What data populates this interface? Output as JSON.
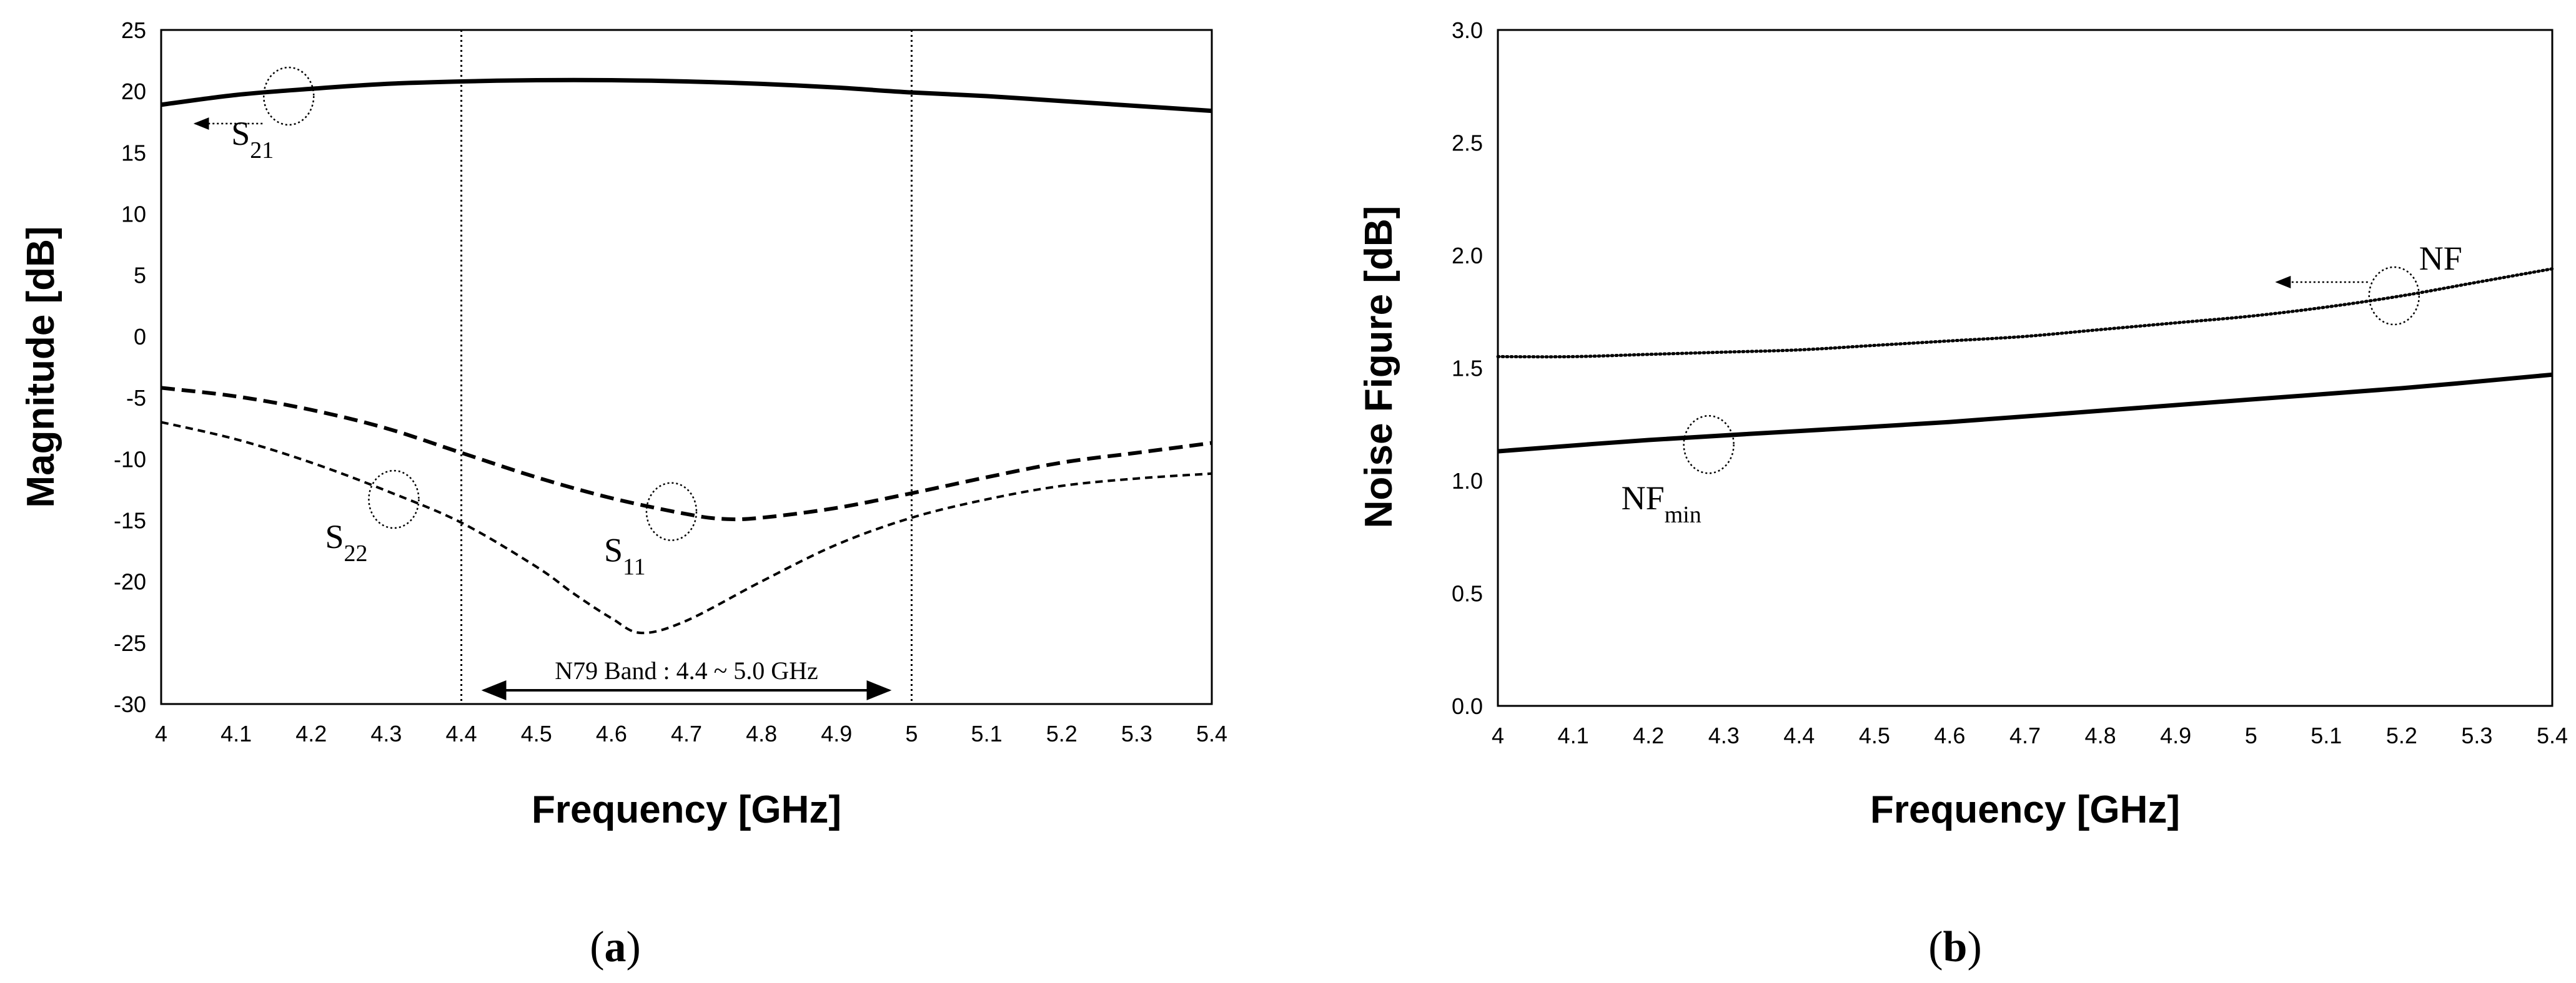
{
  "chart_data": [
    {
      "type": "line",
      "panel": "(a)",
      "panel_letter": "a",
      "title": "",
      "xlabel": "Frequency [GHz]",
      "ylabel": "Magnitude [dB]",
      "xlim": [
        4,
        5.4
      ],
      "ylim": [
        -30,
        25
      ],
      "xticks": [
        4,
        4.1,
        4.2,
        4.3,
        4.4,
        4.5,
        4.6,
        4.7,
        4.8,
        4.9,
        5,
        5.1,
        5.2,
        5.3,
        5.4
      ],
      "yticks": [
        -30,
        -25,
        -20,
        -15,
        -10,
        -5,
        0,
        5,
        10,
        15,
        20,
        25
      ],
      "vlines": [
        4.4,
        5.0
      ],
      "band_annotation": {
        "text": "N79 Band : 4.4 ~ 5.0 GHz",
        "x_range": [
          4.43,
          4.97
        ]
      },
      "series": [
        {
          "name": "S21",
          "sub": "21",
          "style": "solid",
          "x": [
            4.0,
            4.1,
            4.2,
            4.3,
            4.4,
            4.5,
            4.6,
            4.7,
            4.8,
            4.9,
            5.0,
            5.1,
            5.2,
            5.3,
            5.4
          ],
          "values": [
            18.9,
            19.7,
            20.2,
            20.6,
            20.8,
            20.9,
            20.9,
            20.8,
            20.6,
            20.3,
            19.9,
            19.6,
            19.2,
            18.8,
            18.4
          ]
        },
        {
          "name": "S11",
          "sub": "11",
          "style": "dashed",
          "x": [
            4.0,
            4.1,
            4.2,
            4.3,
            4.4,
            4.5,
            4.6,
            4.7,
            4.75,
            4.8,
            4.9,
            5.0,
            5.1,
            5.2,
            5.3,
            5.4
          ],
          "values": [
            -4.2,
            -4.9,
            -6.0,
            -7.5,
            -9.5,
            -11.5,
            -13.2,
            -14.5,
            -14.9,
            -14.8,
            -14.0,
            -12.8,
            -11.5,
            -10.3,
            -9.5,
            -8.7
          ]
        },
        {
          "name": "S22",
          "sub": "22",
          "style": "fine-dashed",
          "x": [
            4.0,
            4.1,
            4.2,
            4.3,
            4.4,
            4.5,
            4.55,
            4.6,
            4.64,
            4.7,
            4.8,
            4.9,
            5.0,
            5.1,
            5.2,
            5.3,
            5.4
          ],
          "values": [
            -7.0,
            -8.4,
            -10.3,
            -12.6,
            -15.2,
            -18.8,
            -21.0,
            -23.0,
            -24.2,
            -23.2,
            -20.0,
            -17.0,
            -14.8,
            -13.3,
            -12.2,
            -11.6,
            -11.2
          ]
        }
      ],
      "annotations": [
        {
          "label": "S",
          "sub": "21",
          "series": "S21",
          "circle_at": [
            4.17,
            19.6
          ],
          "arrow": "left"
        },
        {
          "label": "S",
          "sub": "22",
          "series": "S22",
          "circle_at": [
            4.31,
            -13.3
          ]
        },
        {
          "label": "S",
          "sub": "11",
          "series": "S11",
          "circle_at": [
            4.68,
            -14.3
          ]
        }
      ]
    },
    {
      "type": "line",
      "panel": "(b)",
      "panel_letter": "b",
      "title": "",
      "xlabel": "Frequency [GHz]",
      "ylabel": "Noise Figure [dB]",
      "xlim": [
        4,
        5.4
      ],
      "ylim": [
        0,
        3
      ],
      "xticks": [
        4,
        4.1,
        4.2,
        4.3,
        4.4,
        4.5,
        4.6,
        4.7,
        4.8,
        4.9,
        5,
        5.1,
        5.2,
        5.3,
        5.4
      ],
      "yticks": [
        "0.0",
        "0.5",
        "1.0",
        "1.5",
        "2.0",
        "2.5",
        "3.0"
      ],
      "series": [
        {
          "name": "NF",
          "style": "dotted-marker",
          "x": [
            4.0,
            4.1,
            4.2,
            4.3,
            4.4,
            4.5,
            4.6,
            4.7,
            4.8,
            4.9,
            5.0,
            5.1,
            5.2,
            5.3,
            5.4
          ],
          "values": [
            1.55,
            1.55,
            1.56,
            1.57,
            1.58,
            1.6,
            1.62,
            1.64,
            1.67,
            1.7,
            1.73,
            1.77,
            1.82,
            1.88,
            1.94
          ]
        },
        {
          "name": "NFmin",
          "sub": "min",
          "style": "solid",
          "x": [
            4.0,
            4.2,
            4.4,
            4.6,
            4.8,
            5.0,
            5.2,
            5.4
          ],
          "values": [
            1.13,
            1.18,
            1.22,
            1.26,
            1.31,
            1.36,
            1.41,
            1.47
          ]
        }
      ],
      "annotations": [
        {
          "label": "NF",
          "series": "NF",
          "circle_at": [
            5.19,
            1.82
          ],
          "arrow": "left"
        },
        {
          "label": "NF",
          "sub": "min",
          "series": "NFmin",
          "circle_at": [
            4.28,
            1.16
          ]
        }
      ]
    }
  ]
}
